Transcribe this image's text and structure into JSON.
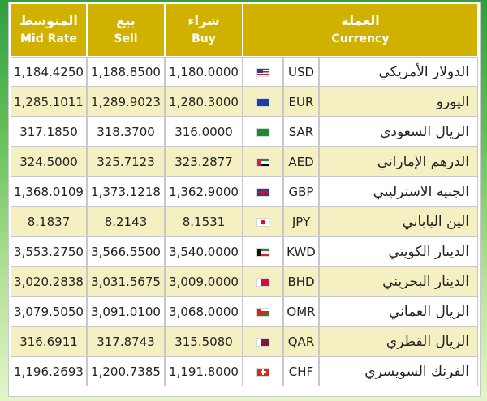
{
  "header": {
    "mid_ar": "المتوسط",
    "mid_en": "Mid Rate",
    "sell_ar": "بيع",
    "sell_en": "Sell",
    "buy_ar": "شراء",
    "buy_en": "Buy",
    "currency_ar": "العملة",
    "currency_en": "Currency"
  },
  "colors": {
    "header_bg": "#d0b100",
    "stripe": "#f5f0c2"
  },
  "rows": [
    {
      "mid": "1,184.4250",
      "sell": "1,188.8500",
      "buy": "1,180.0000",
      "flag": "us-flag-icon",
      "code": "USD",
      "name": "الدولار الأمريكي"
    },
    {
      "mid": "1,285.1011",
      "sell": "1,289.9023",
      "buy": "1,280.3000",
      "flag": "eu-flag-icon",
      "code": "EUR",
      "name": "اليورو"
    },
    {
      "mid": "317.1850",
      "sell": "318.3700",
      "buy": "316.0000",
      "flag": "sa-flag-icon",
      "code": "SAR",
      "name": "الريال السعودي"
    },
    {
      "mid": "324.5000",
      "sell": "325.7123",
      "buy": "323.2877",
      "flag": "ae-flag-icon",
      "code": "AED",
      "name": "الدرهم الإماراتي"
    },
    {
      "mid": "1,368.0109",
      "sell": "1,373.1218",
      "buy": "1,362.9000",
      "flag": "gb-flag-icon",
      "code": "GBP",
      "name": "الجنيه الاسترليني"
    },
    {
      "mid": "8.1837",
      "sell": "8.2143",
      "buy": "8.1531",
      "flag": "jp-flag-icon",
      "code": "JPY",
      "name": "الين الياباني"
    },
    {
      "mid": "3,553.2750",
      "sell": "3,566.5500",
      "buy": "3,540.0000",
      "flag": "kw-flag-icon",
      "code": "KWD",
      "name": "الدينار الكويتي"
    },
    {
      "mid": "3,020.2838",
      "sell": "3,031.5675",
      "buy": "3,009.0000",
      "flag": "bh-flag-icon",
      "code": "BHD",
      "name": "الدينار البحريني"
    },
    {
      "mid": "3,079.5050",
      "sell": "3,091.0100",
      "buy": "3,068.0000",
      "flag": "om-flag-icon",
      "code": "OMR",
      "name": "الريال العماني"
    },
    {
      "mid": "316.6911",
      "sell": "317.8743",
      "buy": "315.5080",
      "flag": "qa-flag-icon",
      "code": "QAR",
      "name": "الريال القطري"
    },
    {
      "mid": "1,196.2693",
      "sell": "1,200.7385",
      "buy": "1,191.8000",
      "flag": "ch-flag-icon",
      "code": "CHF",
      "name": "الفرنك السويسري"
    }
  ]
}
